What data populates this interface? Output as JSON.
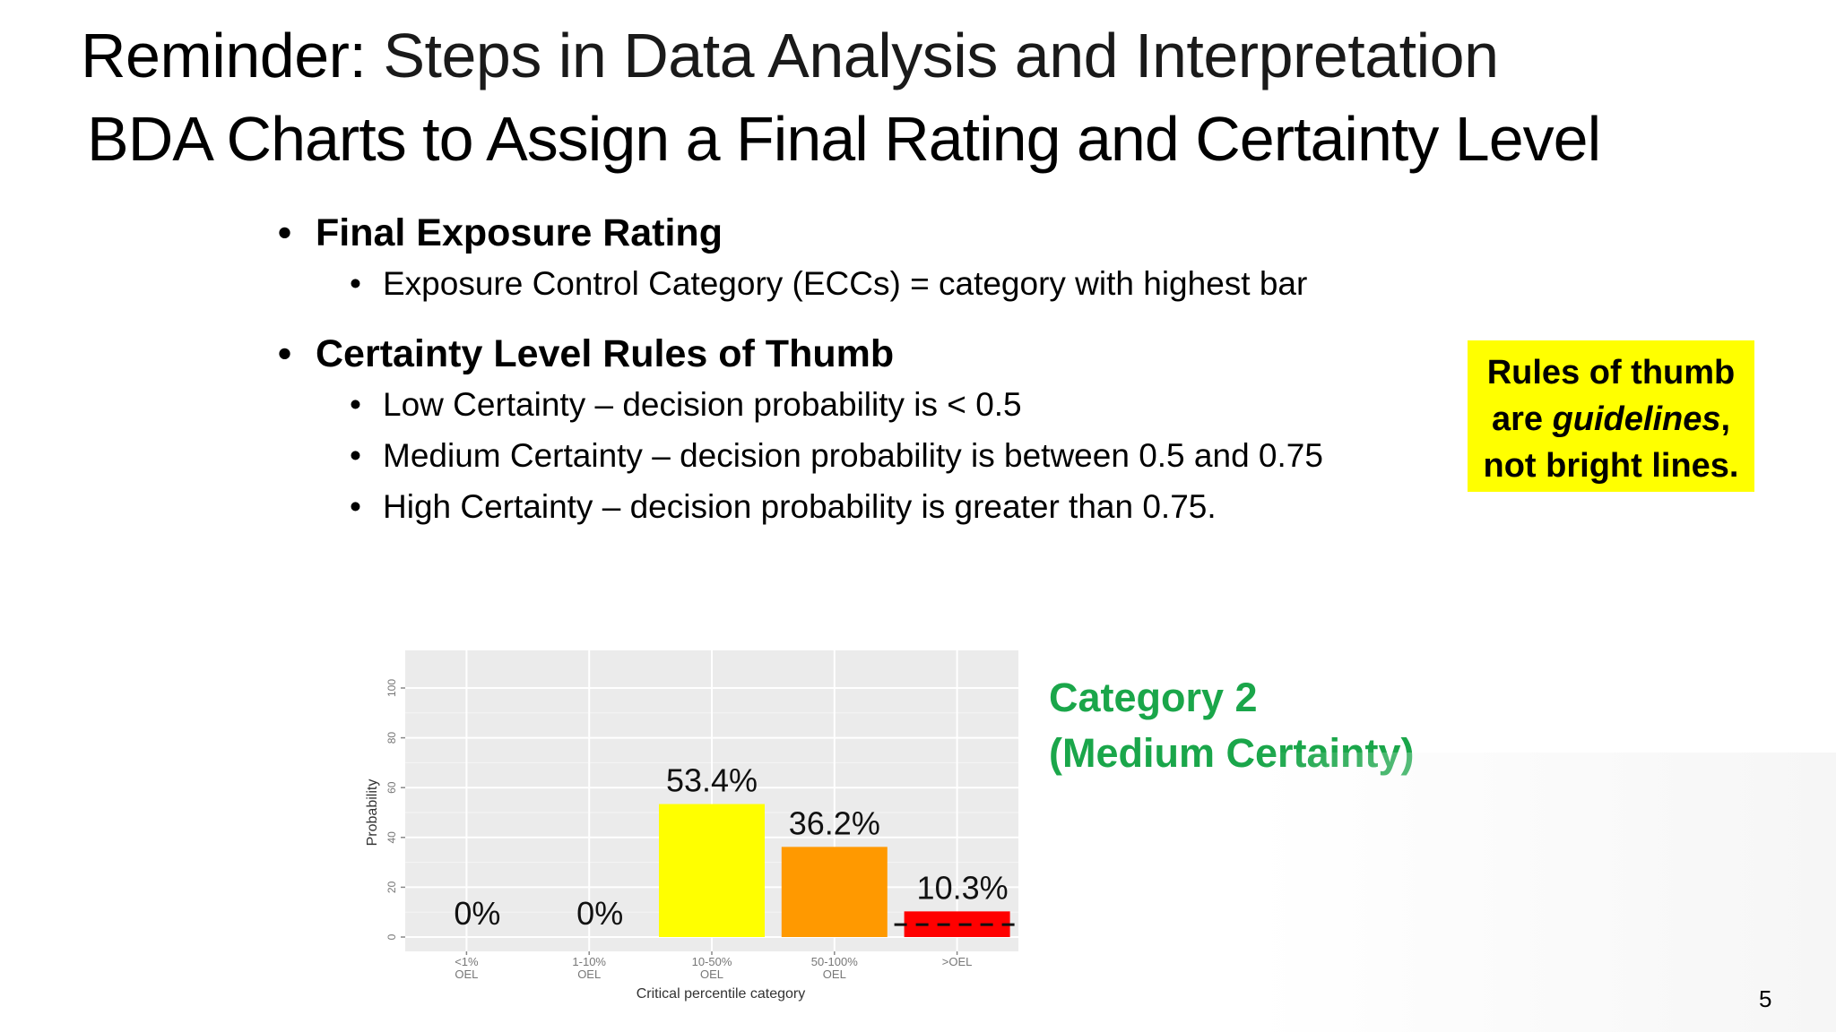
{
  "title": {
    "line1_bold": "Reminder:",
    "line1_rest": " Steps in Data Analysis and Interpretation",
    "line2": "BDA Charts to Assign a Final Rating and Certainty Level"
  },
  "bullets": {
    "final_rating": {
      "heading": "Final Exposure Rating",
      "items": [
        "Exposure Control Category (ECCs) = category with highest bar"
      ]
    },
    "certainty": {
      "heading": "Certainty Level Rules of Thumb",
      "items": [
        "Low Certainty – decision probability is < 0.5",
        "Medium Certainty – decision probability is between 0.5 and 0.75",
        "High Certainty – decision probability is greater than 0.75."
      ]
    }
  },
  "callout": {
    "line1": "Rules of thumb",
    "line2_pre": "are ",
    "line2_em": "guidelines",
    "line2_post": ",",
    "line3": "not bright lines.",
    "color": "#ffff00"
  },
  "result": {
    "line1": "Category 2",
    "line2": "(Medium Certainty)",
    "color": "#1aa64a"
  },
  "page_number": "5",
  "chart_data": {
    "type": "bar",
    "categories": [
      [
        "<1%",
        "OEL"
      ],
      [
        "1-10%",
        "OEL"
      ],
      [
        "10-50%",
        "OEL"
      ],
      [
        "50-100%",
        "OEL"
      ],
      [
        ">OEL"
      ]
    ],
    "values": [
      0,
      0,
      53.4,
      36.2,
      10.3
    ],
    "data_labels": [
      "0%",
      "0%",
      "53.4%",
      "36.2%",
      "10.3%"
    ],
    "colors": [
      "#ffffff",
      "#ffffff",
      "#ffff00",
      "#ff9900",
      "#ff0000"
    ],
    "xlabel": "Critical percentile category",
    "ylabel": "Probability",
    "ylim": [
      0,
      100
    ],
    "yticks": [
      0,
      20,
      40,
      60,
      80,
      100
    ],
    "grid": true,
    "threshold_line": {
      "value": 5,
      "style": "dashed",
      "category_index": 4
    }
  }
}
